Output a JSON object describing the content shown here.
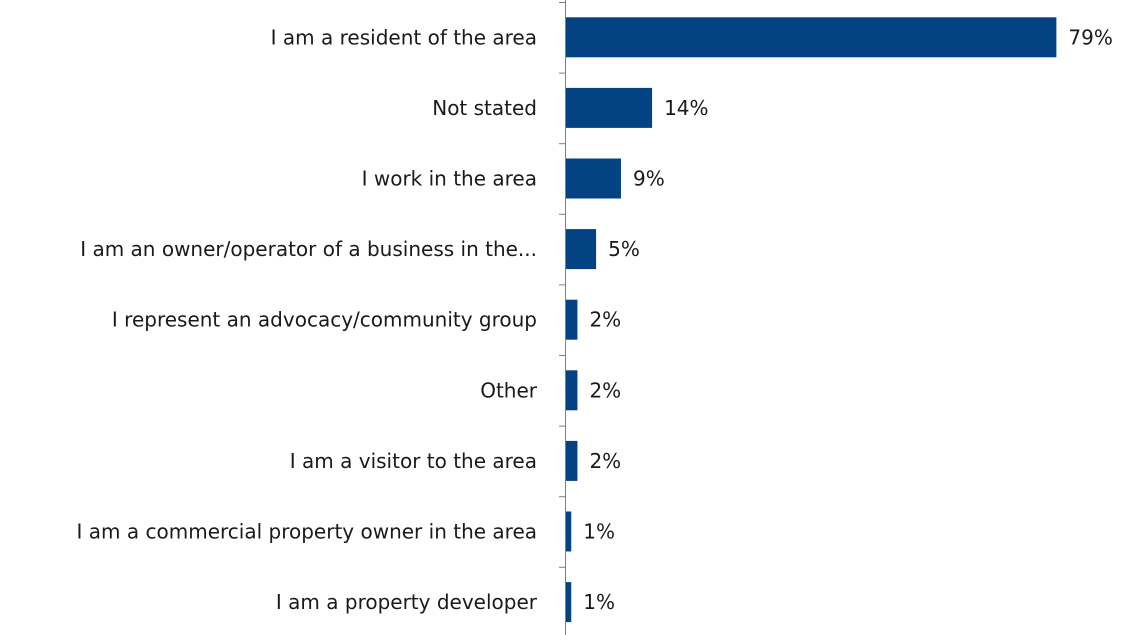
{
  "chart_data": {
    "type": "bar",
    "orientation": "horizontal",
    "categories": [
      "I am a resident of the area",
      "Not stated",
      "I work in the area",
      "I am an owner/operator of a business in the...",
      "I represent an advocacy/community group",
      "Other",
      "I am a visitor to the area",
      "I am a commercial property owner in the area",
      "I am a property developer"
    ],
    "values": [
      79,
      14,
      9,
      5,
      2,
      2,
      2,
      1,
      1
    ],
    "value_labels": [
      "79%",
      "14%",
      "9%",
      "5%",
      "2%",
      "2%",
      "2%",
      "1%",
      "1%"
    ],
    "unit": "%",
    "xlim": [
      0,
      100
    ],
    "grid": false,
    "legend": "none",
    "bar_color": "#034384",
    "axis_color": "#808080"
  }
}
